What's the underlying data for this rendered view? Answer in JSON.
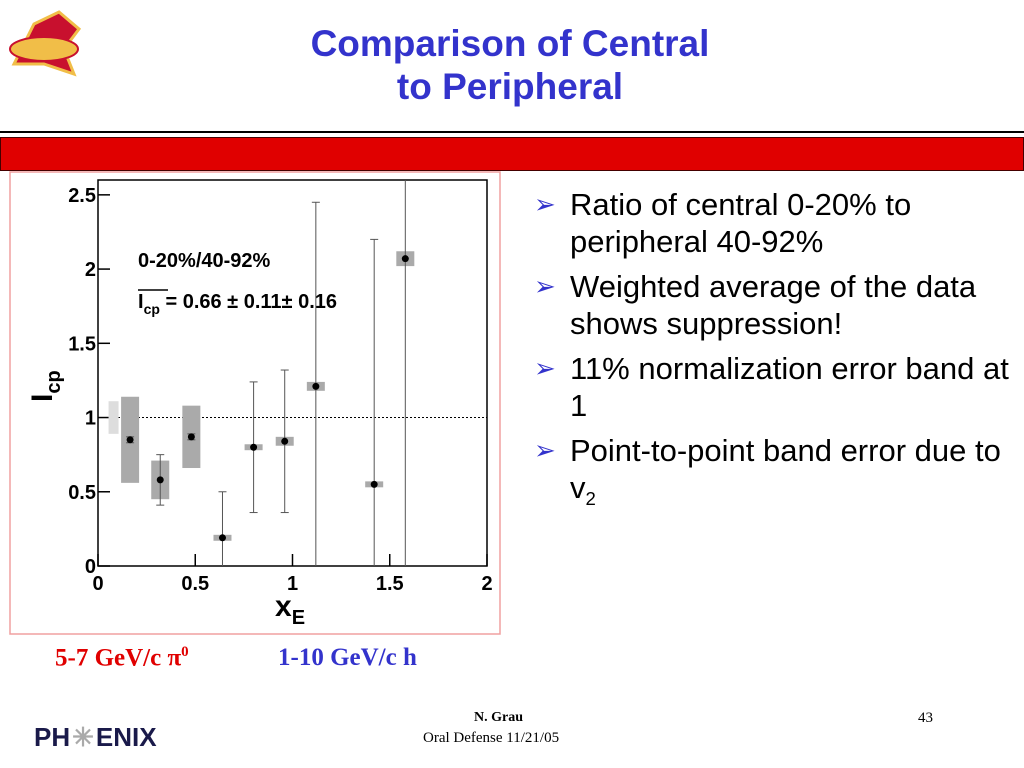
{
  "slide": {
    "title": [
      "Comparison of Central",
      "to Peripheral"
    ],
    "bullets": [
      {
        "text": "Ratio of central 0-20% to peripheral 40-92%"
      },
      {
        "text": "Weighted average of the data shows suppression!"
      },
      {
        "text": "11% normalization error band at 1"
      },
      {
        "text": "Point-to-point band error due to v",
        "sub": "2"
      }
    ],
    "caption_left": {
      "text": "5-7 GeV/c π",
      "sup": "0"
    },
    "caption_right": "1-10 GeV/c h",
    "footer_author": "N. Grau",
    "footer_event": "Oral Defense 11/21/05",
    "page_number": "43",
    "logo": [
      "PH",
      "ENIX"
    ]
  },
  "chart_data": {
    "type": "scatter",
    "xlabel": {
      "main": "x",
      "sub": "E"
    },
    "ylabel": {
      "main": "I",
      "sub": "cp"
    },
    "annotations": [
      "0-20%/40-92%",
      {
        "main": "I",
        "sub": "cp",
        "text": " = 0.66 ± 0.11± 0.16"
      }
    ],
    "xlim": [
      0,
      2
    ],
    "ylim": [
      0,
      2.6
    ],
    "xticks": [
      0,
      0.5,
      1,
      1.5,
      2
    ],
    "yticks": [
      0,
      0.5,
      1,
      1.5,
      2,
      2.5
    ],
    "reference_line": 1,
    "normalization_band": {
      "x": 0.08,
      "y": 1,
      "error": 0.11
    },
    "series": [
      {
        "color": "#000000",
        "box_color": "#aaaaaa",
        "x": [
          0.165,
          0.32,
          0.48,
          0.64,
          0.8,
          0.96,
          1.12,
          1.42,
          1.58
        ],
        "values": [
          0.85,
          0.58,
          0.87,
          0.19,
          0.8,
          0.84,
          1.21,
          0.55,
          2.07
        ],
        "errors": [
          0.02,
          0.17,
          0.02,
          0.31,
          0.44,
          0.48,
          1.24,
          1.65,
          2.5
        ],
        "systematics": [
          0.29,
          0.13,
          0.21,
          0.02,
          0.02,
          0.03,
          0.03,
          0.02,
          0.05
        ]
      }
    ]
  }
}
